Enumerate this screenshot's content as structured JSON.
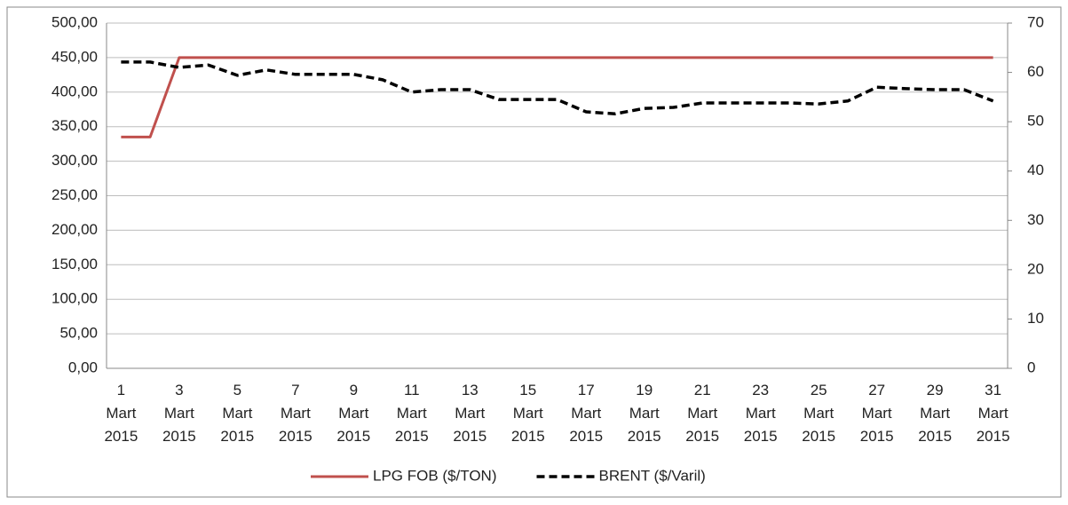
{
  "chart_data": {
    "type": "line",
    "categories": [
      "1 Mart 2015",
      null,
      "3 Mart 2015",
      null,
      "5 Mart 2015",
      null,
      "7 Mart 2015",
      null,
      "9 Mart 2015",
      null,
      "11 Mart 2015",
      null,
      "13 Mart 2015",
      null,
      "15 Mart 2015",
      null,
      "17 Mart 2015",
      null,
      "19 Mart 2015",
      null,
      "21 Mart 2015",
      null,
      "23 Mart 2015",
      null,
      "25 Mart 2015",
      null,
      "27 Mart 2015",
      null,
      "29 Mart 2015",
      null,
      "31 Mart 2015"
    ],
    "series": [
      {
        "name": "LPG FOB ($/TON)",
        "color": "#c0504d",
        "values": [
          335,
          335,
          450,
          450,
          450,
          450,
          450,
          450,
          450,
          450,
          450,
          450,
          450,
          450,
          450,
          450,
          450,
          450,
          450,
          450,
          450,
          450,
          450,
          450,
          450,
          450,
          450,
          450,
          450,
          450,
          450
        ]
      },
      {
        "name": "BRENT ($/Varil)",
        "color": "#000000",
        "axis": "y2",
        "dashed": true,
        "values": [
          62.1,
          62.1,
          61,
          61.5,
          59.4,
          60.5,
          59.6,
          59.6,
          59.6,
          58.5,
          56,
          56.5,
          56.5,
          54.5,
          54.5,
          54.5,
          52,
          51.6,
          52.7,
          52.9,
          53.8,
          53.8,
          53.8,
          53.8,
          53.6,
          54.2,
          57,
          56.7,
          56.5,
          56.5,
          54.2
        ]
      }
    ],
    "ylim": [
      0,
      500
    ],
    "yticks": [
      {
        "value": 0,
        "label": "0,00"
      },
      {
        "value": 50,
        "label": "50,00"
      },
      {
        "value": 100,
        "label": "100,00"
      },
      {
        "value": 150,
        "label": "150,00"
      },
      {
        "value": 200,
        "label": "200,00"
      },
      {
        "value": 250,
        "label": "250,00"
      },
      {
        "value": 300,
        "label": "300,00"
      },
      {
        "value": 350,
        "label": "350,00"
      },
      {
        "value": 400,
        "label": "400,00"
      },
      {
        "value": 450,
        "label": "450,00"
      },
      {
        "value": 500,
        "label": "500,00"
      }
    ],
    "y2lim": [
      0,
      70
    ],
    "y2ticks": [
      0,
      10,
      20,
      30,
      40,
      50,
      60,
      70
    ],
    "grid": true,
    "legend": "bottom"
  }
}
